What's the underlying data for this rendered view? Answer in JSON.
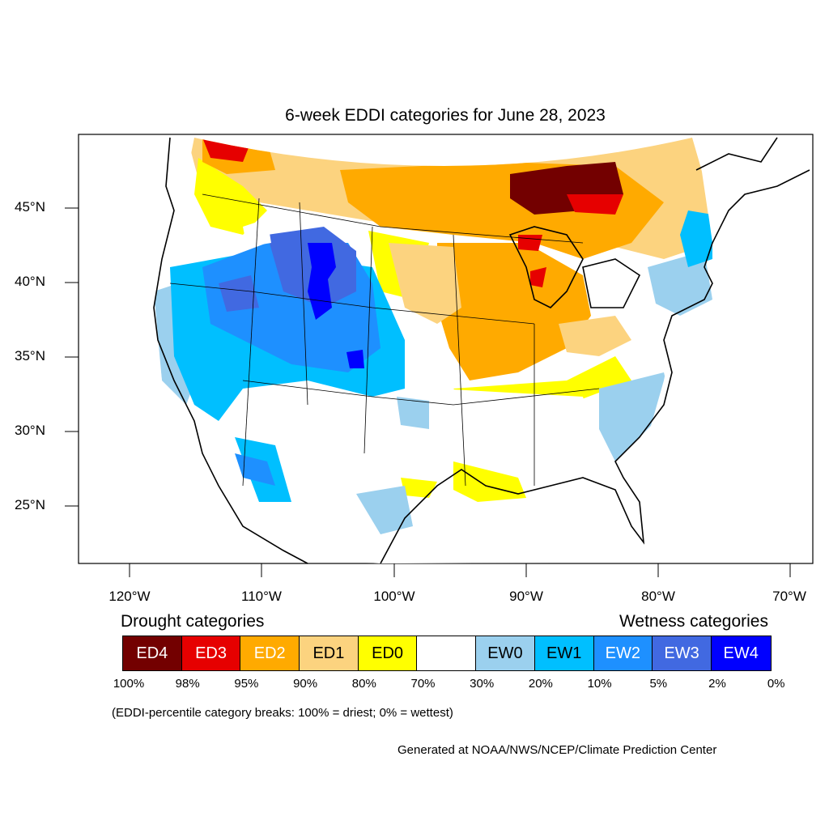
{
  "title": "6-week EDDI categories for June 28, 2023",
  "axes": {
    "lat_labels": [
      "45°N",
      "40°N",
      "35°N",
      "30°N",
      "25°N"
    ],
    "lon_labels": [
      "120°W",
      "110°W",
      "100°W",
      "90°W",
      "80°W",
      "70°W"
    ]
  },
  "legend": {
    "drought_heading": "Drought categories",
    "wetness_heading": "Wetness categories",
    "categories": [
      {
        "label": "ED4",
        "color": "#730000",
        "text_color": "#ffffff"
      },
      {
        "label": "ED3",
        "color": "#e60000",
        "text_color": "#ffffff"
      },
      {
        "label": "ED2",
        "color": "#ffaa00",
        "text_color": "#ffffff"
      },
      {
        "label": "ED1",
        "color": "#fcd37f",
        "text_color": "#000000"
      },
      {
        "label": "ED0",
        "color": "#ffff00",
        "text_color": "#000000"
      },
      {
        "label": "",
        "color": "#ffffff",
        "text_color": "#000000"
      },
      {
        "label": "EW0",
        "color": "#9bd0ee",
        "text_color": "#000000"
      },
      {
        "label": "EW1",
        "color": "#00bfff",
        "text_color": "#000000"
      },
      {
        "label": "EW2",
        "color": "#1e90ff",
        "text_color": "#ffffff"
      },
      {
        "label": "EW3",
        "color": "#4169e1",
        "text_color": "#ffffff"
      },
      {
        "label": "EW4",
        "color": "#0000ff",
        "text_color": "#ffffff"
      }
    ],
    "percentiles": [
      "100%",
      "98%",
      "95%",
      "90%",
      "80%",
      "70%",
      "30%",
      "20%",
      "10%",
      "5%",
      "2%",
      "0%"
    ]
  },
  "note": "(EDDI-percentile category breaks: 100% = driest; 0% = wettest)",
  "credit": "Generated at NOAA/NWS/NCEP/Climate Prediction Center"
}
